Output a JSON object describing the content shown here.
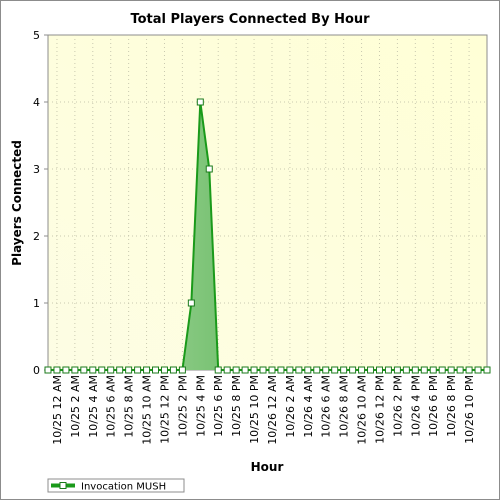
{
  "chart_data": {
    "type": "area",
    "title": "Total Players Connected By Hour",
    "xlabel": "Hour",
    "ylabel": "Players Connected",
    "ylim": [
      0,
      5
    ],
    "yticks": [
      0,
      1,
      2,
      3,
      4,
      5
    ],
    "grid": true,
    "legend_position": "bottom-left",
    "x_tick_labels": [
      "10/25 12 AM",
      "10/25 2 AM",
      "10/25 4 AM",
      "10/25 6 AM",
      "10/25 8 AM",
      "10/25 10 AM",
      "10/25 12 PM",
      "10/25 2 PM",
      "10/25 4 PM",
      "10/25 6 PM",
      "10/25 8 PM",
      "10/25 10 PM",
      "10/26 12 AM",
      "10/26 2 AM",
      "10/26 4 AM",
      "10/26 6 AM",
      "10/26 8 AM",
      "10/26 10 AM",
      "10/26 12 PM",
      "10/26 2 PM",
      "10/26 4 PM",
      "10/26 6 PM",
      "10/26 8 PM",
      "10/26 10 PM"
    ],
    "series": [
      {
        "name": "Invocation MUSH",
        "color": "#1a9a1a",
        "values": [
          0,
          0,
          0,
          0,
          0,
          0,
          0,
          0,
          0,
          0,
          0,
          0,
          0,
          0,
          0,
          0,
          1,
          4,
          3,
          0,
          0,
          0,
          0,
          0,
          0,
          0,
          0,
          0,
          0,
          0,
          0,
          0,
          0,
          0,
          0,
          0,
          0,
          0,
          0,
          0,
          0,
          0,
          0,
          0,
          0,
          0,
          0,
          0,
          0,
          0
        ]
      }
    ]
  }
}
